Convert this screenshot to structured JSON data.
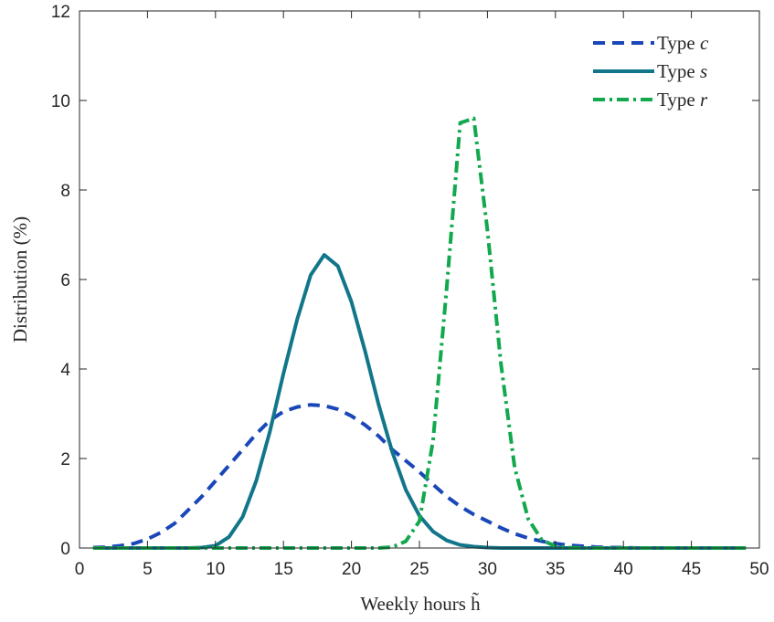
{
  "chart_data": {
    "type": "line",
    "xlabel": "Weekly hours h̃",
    "ylabel": "Distribution (%)",
    "xlim": [
      0,
      50
    ],
    "ylim": [
      0,
      12
    ],
    "xticks": [
      0,
      5,
      10,
      15,
      20,
      25,
      30,
      35,
      40,
      45,
      50
    ],
    "yticks": [
      0,
      2,
      4,
      6,
      8,
      10,
      12
    ],
    "grid": false,
    "legend_position": "top-right",
    "x": [
      1,
      2,
      3,
      4,
      5,
      6,
      7,
      8,
      9,
      10,
      11,
      12,
      13,
      14,
      15,
      16,
      17,
      18,
      19,
      20,
      21,
      22,
      23,
      24,
      25,
      26,
      27,
      28,
      29,
      30,
      31,
      32,
      33,
      34,
      35,
      36,
      37,
      38,
      39,
      40,
      41,
      42,
      43,
      44,
      45,
      46,
      47,
      48,
      49
    ],
    "series": [
      {
        "name": "Type",
        "name_var": "c",
        "color": "#1a47b8",
        "dash": "dashed",
        "values": [
          0.01,
          0.02,
          0.05,
          0.1,
          0.2,
          0.35,
          0.55,
          0.85,
          1.15,
          1.5,
          1.85,
          2.2,
          2.55,
          2.85,
          3.05,
          3.15,
          3.2,
          3.18,
          3.1,
          2.95,
          2.75,
          2.5,
          2.2,
          1.95,
          1.7,
          1.42,
          1.15,
          0.93,
          0.75,
          0.6,
          0.45,
          0.32,
          0.22,
          0.15,
          0.1,
          0.06,
          0.04,
          0.02,
          0.01,
          0.01,
          0,
          0,
          0,
          0,
          0,
          0,
          0,
          0,
          0
        ]
      },
      {
        "name": "Type",
        "name_var": "s",
        "color": "#12768a",
        "dash": "solid",
        "values": [
          0,
          0,
          0,
          0,
          0,
          0,
          0,
          0,
          0.01,
          0.05,
          0.25,
          0.7,
          1.5,
          2.6,
          3.9,
          5.1,
          6.1,
          6.55,
          6.3,
          5.5,
          4.4,
          3.2,
          2.15,
          1.3,
          0.72,
          0.37,
          0.17,
          0.07,
          0.03,
          0.01,
          0,
          0,
          0,
          0,
          0,
          0,
          0,
          0,
          0,
          0,
          0,
          0,
          0,
          0,
          0,
          0,
          0,
          0,
          0
        ]
      },
      {
        "name": "Type",
        "name_var": "r",
        "color": "#12a84e",
        "dash": "dashdot",
        "values": [
          0,
          0,
          0,
          0,
          0,
          0,
          0,
          0,
          0,
          0,
          0,
          0,
          0,
          0,
          0,
          0,
          0,
          0,
          0,
          0,
          0,
          0,
          0.02,
          0.15,
          0.6,
          2.4,
          5.8,
          9.5,
          9.6,
          7.1,
          4.1,
          1.8,
          0.65,
          0.18,
          0.04,
          0.01,
          0,
          0,
          0,
          0,
          0,
          0,
          0,
          0,
          0,
          0,
          0,
          0,
          0
        ]
      }
    ]
  }
}
